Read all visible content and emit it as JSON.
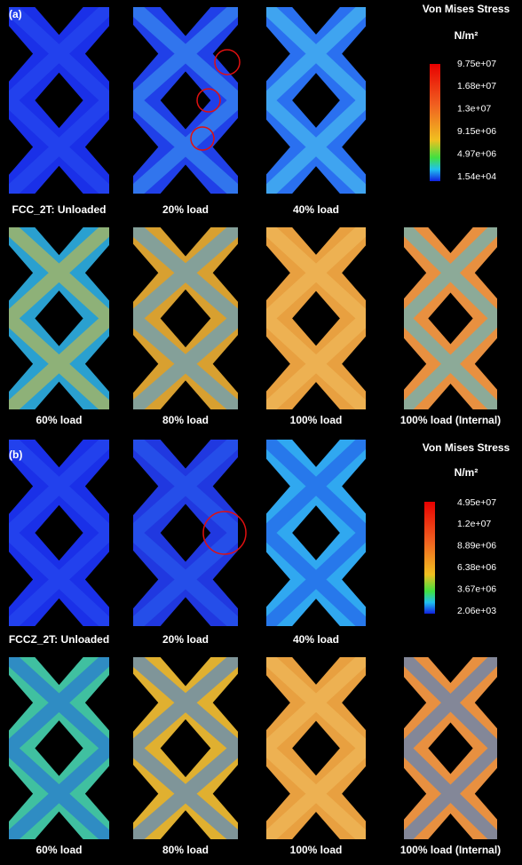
{
  "panel_a": {
    "label": "(a)",
    "legend_title": "Von Mises Stress",
    "unit": "N/m²",
    "legend_labels": [
      "9.75e+07",
      "1.68e+07",
      "1.3e+07",
      "9.15e+06",
      "4.97e+06",
      "1.54e+04"
    ],
    "captions": [
      "FCC_2T: Unloaded",
      "20% load",
      "40% load",
      "60% load",
      "80% load",
      "100% load",
      "100% load (Internal)"
    ]
  },
  "panel_b": {
    "label": "(b)",
    "legend_title": "Von Mises Stress",
    "unit": "N/m²",
    "legend_labels": [
      "4.95e+07",
      "1.2e+07",
      "8.89e+06",
      "6.38e+06",
      "3.67e+06",
      "2.06e+03"
    ],
    "captions": [
      "FCCZ_2T: Unloaded",
      "20% load",
      "40% load",
      "60% load",
      "80% load",
      "100% load",
      "100% load (Internal)"
    ]
  }
}
